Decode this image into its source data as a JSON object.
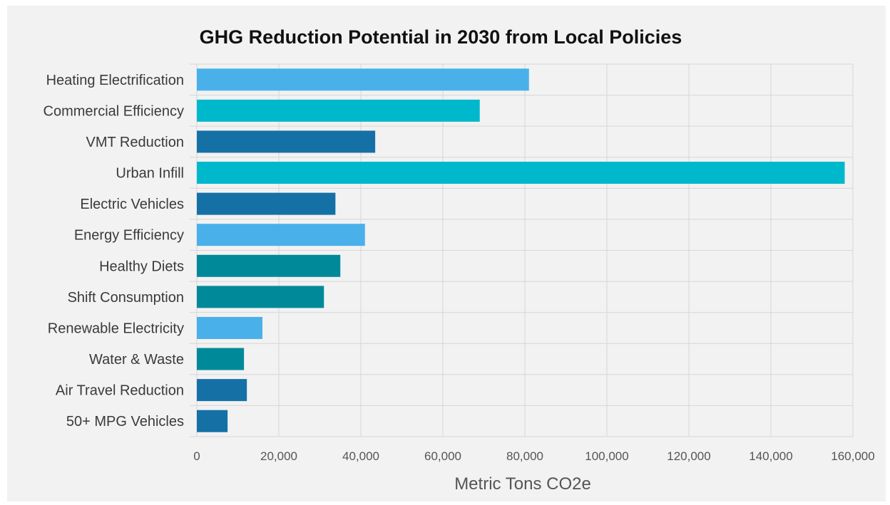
{
  "chart_data": {
    "type": "bar",
    "orientation": "horizontal",
    "title": "GHG Reduction Potential in 2030 from Local Policies",
    "xlabel": "Metric Tons CO2e",
    "ylabel": "",
    "xlim": [
      0,
      160000
    ],
    "x_ticks": [
      "0",
      "20,000",
      "40,000",
      "60,000",
      "80,000",
      "100,000",
      "120,000",
      "140,000",
      "160,000"
    ],
    "grid": true,
    "legend": "none",
    "categories": [
      "Heating Electrification",
      "Commercial Efficiency",
      "VMT Reduction",
      "Urban Infill",
      "Electric Vehicles",
      "Energy Efficiency",
      "Healthy Diets",
      "Shift Consumption",
      "Renewable Electricity",
      "Water & Waste",
      "Air Travel Reduction",
      "50+ MPG Vehicles"
    ],
    "values": [
      81000,
      69000,
      43500,
      158000,
      33800,
      41000,
      35000,
      31000,
      16000,
      11500,
      12200,
      7500
    ],
    "bar_colors": [
      "#4ab0ea",
      "#00b8cc",
      "#1570a6",
      "#00b8cc",
      "#1570a6",
      "#4ab0ea",
      "#008a99",
      "#008a99",
      "#4ab0ea",
      "#008a99",
      "#1570a6",
      "#1570a6"
    ]
  }
}
